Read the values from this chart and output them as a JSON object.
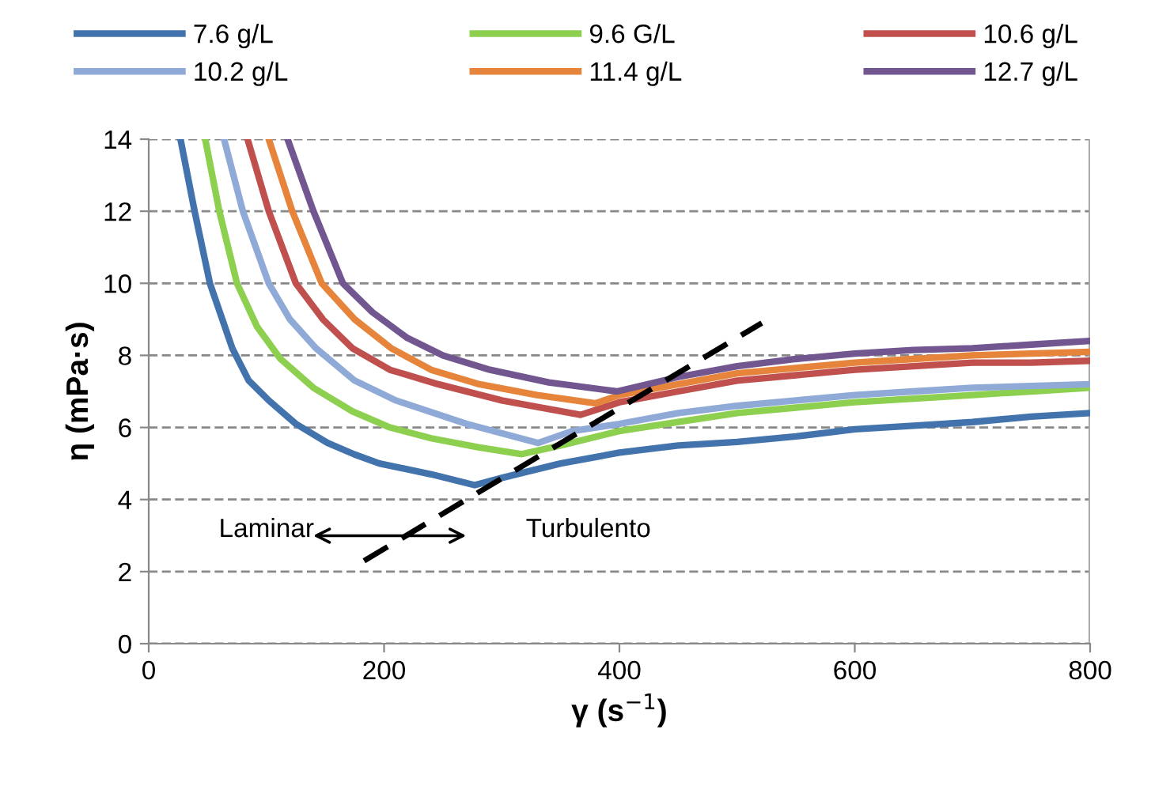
{
  "chart_data": {
    "type": "line",
    "xlabel": "γ (s$^{−1}$)",
    "ylabel": "η (mPa·s)",
    "xlim": [
      0,
      800
    ],
    "ylim": [
      0,
      14
    ],
    "xticks": [
      0,
      200,
      400,
      600,
      800
    ],
    "yticks": [
      0,
      2,
      4,
      6,
      8,
      10,
      12,
      14
    ],
    "grid": "y",
    "legend": "top",
    "marker": "none",
    "line_style": "solid",
    "series": [
      {
        "name": "7.6 g/L",
        "color": "#4373ac",
        "x": [
          27,
          39,
          52,
          71,
          85,
          102,
          125,
          152,
          175,
          196,
          240,
          277,
          300,
          350,
          400,
          450,
          500,
          550,
          600,
          650,
          700,
          750,
          800
        ],
        "values": [
          14,
          12,
          10,
          8.2,
          7.3,
          6.75,
          6.1,
          5.57,
          5.25,
          5.0,
          4.7,
          4.4,
          4.6,
          5.0,
          5.3,
          5.5,
          5.6,
          5.75,
          5.95,
          6.05,
          6.15,
          6.3,
          6.4
        ]
      },
      {
        "name": "9.6 G/L",
        "color": "#8dcf4f",
        "x": [
          48,
          60,
          75,
          92,
          112,
          140,
          173,
          205,
          240,
          280,
          317,
          350,
          400,
          450,
          500,
          550,
          600,
          650,
          700,
          750,
          800
        ],
        "values": [
          14,
          12,
          10,
          8.8,
          7.9,
          7.1,
          6.45,
          6.0,
          5.7,
          5.45,
          5.26,
          5.5,
          5.9,
          6.15,
          6.4,
          6.55,
          6.7,
          6.8,
          6.9,
          7.0,
          7.1
        ]
      },
      {
        "name": "10.6 g/L",
        "color": "#c0504d",
        "x": [
          84,
          102,
          125,
          148,
          173,
          205,
          246,
          300,
          367,
          400,
          450,
          500,
          550,
          600,
          650,
          700,
          750,
          800
        ],
        "values": [
          14,
          12,
          10,
          9.0,
          8.2,
          7.6,
          7.2,
          6.75,
          6.35,
          6.7,
          7.0,
          7.3,
          7.45,
          7.6,
          7.7,
          7.8,
          7.8,
          7.85
        ]
      },
      {
        "name": "10.2 g/L",
        "color": "#8faad6",
        "x": [
          64,
          80,
          102,
          120,
          142,
          175,
          210,
          270,
          331,
          360,
          400,
          450,
          500,
          550,
          600,
          650,
          700,
          750,
          800
        ],
        "values": [
          14,
          12,
          10,
          9.0,
          8.2,
          7.3,
          6.75,
          6.1,
          5.57,
          5.9,
          6.1,
          6.4,
          6.6,
          6.75,
          6.9,
          7.0,
          7.1,
          7.15,
          7.2
        ]
      },
      {
        "name": "11.4 g/L",
        "color": "#e5843a",
        "x": [
          102,
          122,
          147,
          175,
          206,
          240,
          281,
          330,
          380,
          400,
          450,
          500,
          550,
          600,
          650,
          700,
          750,
          800
        ],
        "values": [
          14,
          12,
          10,
          9.0,
          8.2,
          7.6,
          7.2,
          6.9,
          6.67,
          6.9,
          7.2,
          7.5,
          7.65,
          7.8,
          7.9,
          8.0,
          8.05,
          8.1
        ]
      },
      {
        "name": "12.7 g/L",
        "color": "#72568f",
        "x": [
          118,
          140,
          165,
          190,
          219,
          250,
          290,
          340,
          398,
          450,
          500,
          550,
          600,
          650,
          700,
          750,
          800
        ],
        "values": [
          14,
          12,
          10,
          9.2,
          8.5,
          8.0,
          7.6,
          7.25,
          7.0,
          7.4,
          7.7,
          7.9,
          8.05,
          8.15,
          8.2,
          8.3,
          8.4
        ]
      },
      {
        "color": "#000000",
        "line_style": "dashed",
        "x": [
          183,
          521
        ],
        "values": [
          2.3,
          8.9
        ]
      }
    ],
    "annotations": [
      "Laminar",
      "Turbulento"
    ]
  }
}
